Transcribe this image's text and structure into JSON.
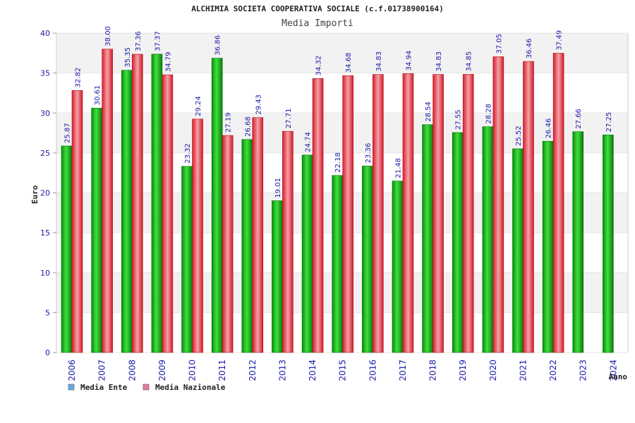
{
  "chart_data": {
    "type": "bar",
    "title": "ALCHIMIA SOCIETA COOPERATIVA SOCIALE (c.f.01738900164)",
    "subtitle": "Media Importi",
    "xlabel": "Anno",
    "ylabel": "Euro",
    "ylim": [
      0,
      40
    ],
    "yticks": [
      0,
      5,
      10,
      15,
      20,
      25,
      30,
      35,
      40
    ],
    "categories": [
      "2006",
      "2007",
      "2008",
      "2009",
      "2010",
      "2011",
      "2012",
      "2013",
      "2014",
      "2015",
      "2016",
      "2017",
      "2018",
      "2019",
      "2020",
      "2021",
      "2022",
      "2023",
      "2024"
    ],
    "series": [
      {
        "name": "Media Ente",
        "color": "#1aa81a",
        "values": [
          25.87,
          30.61,
          35.35,
          37.37,
          23.32,
          36.86,
          26.68,
          19.01,
          24.74,
          22.18,
          23.36,
          21.48,
          28.54,
          27.55,
          28.28,
          25.52,
          26.46,
          27.66,
          27.25
        ],
        "labels": [
          "25.87",
          "30.61",
          "35.35",
          "37.37",
          "23.32",
          "36.86",
          "26.68",
          "19.01",
          "24.74",
          "22.18",
          "23.36",
          "21.48",
          "28.54",
          "27.55",
          "28.28",
          "25.52",
          "26.46",
          "27.66",
          "27.25"
        ]
      },
      {
        "name": "Media Nazionale",
        "color": "#e0303a",
        "values": [
          32.82,
          38.0,
          37.36,
          34.79,
          29.24,
          27.19,
          29.43,
          27.71,
          34.32,
          34.68,
          34.83,
          34.94,
          34.83,
          34.85,
          37.05,
          36.46,
          37.49,
          null,
          null
        ],
        "labels": [
          "32.82",
          "38.00",
          "37.36",
          "34.79",
          "29.24",
          "27.19",
          "29.43",
          "27.71",
          "34.32",
          "34.68",
          "34.83",
          "34.94",
          "34.83",
          "34.85",
          "37.05",
          "36.46",
          "37.49",
          null,
          null
        ]
      }
    ],
    "legend": [
      {
        "label": "Media Ente",
        "color": "#6aa7e8"
      },
      {
        "label": "Media Nazionale",
        "color": "#e87aa0"
      }
    ],
    "grid": true,
    "legend_position": "bottom-left"
  }
}
